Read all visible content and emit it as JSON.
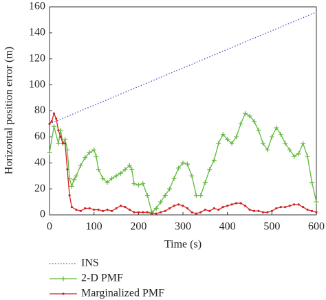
{
  "chart_data": {
    "type": "line",
    "xlabel": "Time (s)",
    "ylabel": "Horizontal position error (m)",
    "xlim": [
      0,
      600
    ],
    "xticks": [
      0,
      100,
      200,
      300,
      400,
      500,
      600
    ],
    "ylim": [
      0,
      160
    ],
    "yticks": [
      0,
      20,
      40,
      60,
      80,
      100,
      120,
      140,
      160
    ],
    "grid": false,
    "legend": "below",
    "series": [
      {
        "name": "INS",
        "color": "#3a4fc0",
        "linestyle": "dotted",
        "marker": "none",
        "x": [
          0,
          600
        ],
        "values": [
          70,
          156
        ]
      },
      {
        "name": "2-D PMF",
        "color": "#5fb83a",
        "linestyle": "solid",
        "marker": "plus",
        "x": [
          0,
          10,
          20,
          25,
          30,
          35,
          40,
          45,
          50,
          55,
          60,
          70,
          80,
          90,
          100,
          105,
          110,
          120,
          130,
          140,
          150,
          160,
          170,
          180,
          185,
          190,
          200,
          210,
          220,
          230,
          240,
          250,
          260,
          270,
          280,
          290,
          300,
          310,
          320,
          330,
          340,
          350,
          360,
          370,
          380,
          390,
          400,
          410,
          420,
          430,
          440,
          450,
          460,
          470,
          480,
          490,
          500,
          510,
          520,
          530,
          540,
          550,
          560,
          570,
          580,
          590,
          600
        ],
        "values": [
          48,
          68,
          55,
          65,
          55,
          58,
          50,
          28,
          22,
          27,
          30,
          38,
          44,
          48,
          50,
          45,
          35,
          28,
          25,
          28,
          30,
          32,
          35,
          38,
          35,
          24,
          23,
          24,
          15,
          2,
          5,
          10,
          15,
          20,
          28,
          36,
          40,
          39,
          30,
          15,
          15,
          25,
          35,
          42,
          55,
          62,
          58,
          55,
          60,
          70,
          78,
          76,
          72,
          65,
          55,
          50,
          60,
          67,
          62,
          55,
          50,
          45,
          47,
          55,
          45,
          25,
          10
        ]
      },
      {
        "name": "Marginalized PMF",
        "color": "#d42020",
        "linestyle": "solid",
        "marker": "dot",
        "x": [
          0,
          5,
          10,
          15,
          20,
          25,
          30,
          35,
          40,
          45,
          50,
          60,
          70,
          80,
          90,
          100,
          110,
          120,
          130,
          140,
          150,
          160,
          170,
          180,
          190,
          200,
          210,
          220,
          230,
          240,
          250,
          260,
          270,
          280,
          290,
          300,
          310,
          320,
          330,
          340,
          350,
          360,
          370,
          380,
          390,
          400,
          410,
          420,
          430,
          440,
          450,
          460,
          470,
          480,
          490,
          500,
          510,
          520,
          530,
          540,
          550,
          560,
          570,
          580,
          590,
          600
        ],
        "values": [
          70,
          72,
          78,
          74,
          65,
          60,
          55,
          55,
          35,
          15,
          6,
          4,
          3,
          5,
          5,
          4,
          4,
          3,
          4,
          3,
          5,
          7,
          6,
          4,
          2,
          2,
          2,
          2,
          1,
          1,
          2,
          3,
          5,
          7,
          8,
          7,
          5,
          2,
          1,
          2,
          4,
          3,
          5,
          4,
          6,
          7,
          8,
          9,
          9,
          7,
          4,
          3,
          3,
          2,
          2,
          3,
          5,
          6,
          6,
          7,
          8,
          8,
          6,
          4,
          3,
          2
        ]
      }
    ]
  }
}
